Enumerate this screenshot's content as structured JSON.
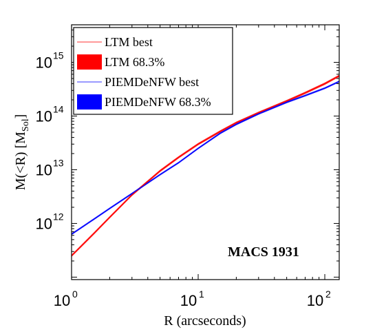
{
  "chart_data": {
    "type": "line",
    "xscale": "log",
    "yscale": "log",
    "xlim": [
      1,
      130
    ],
    "ylim": [
      90000000000.0,
      5000000000000000.0
    ],
    "xlabel": "R (arcseconds)",
    "ylabel_main": "M(<R)  [M",
    "ylabel_sub": "Sol",
    "ylabel_close": "]",
    "x_ticks": [
      {
        "base": "10",
        "exp": "0",
        "value": 1
      },
      {
        "base": "10",
        "exp": "1",
        "value": 10
      },
      {
        "base": "10",
        "exp": "2",
        "value": 100
      }
    ],
    "y_ticks": [
      {
        "base": "10",
        "exp": "12",
        "value": 1000000000000.0
      },
      {
        "base": "10",
        "exp": "13",
        "value": 10000000000000.0
      },
      {
        "base": "10",
        "exp": "14",
        "value": 100000000000000.0
      },
      {
        "base": "10",
        "exp": "15",
        "value": 1000000000000000.0
      }
    ],
    "annotation": "MACS 1931",
    "legend_position": "top-left",
    "legend": [
      {
        "label": "LTM best",
        "kind": "line",
        "color": "#ff3333"
      },
      {
        "label": "LTM 68.3%",
        "kind": "patch",
        "color": "#ff0000"
      },
      {
        "label": "PIEMDeNFW best",
        "kind": "line",
        "color": "#3333ff"
      },
      {
        "label": "PIEMDeNFW 68.3%",
        "kind": "patch",
        "color": "#0000ff"
      }
    ],
    "series": [
      {
        "name": "LTM best",
        "color": "#ff0000",
        "band_factor": 1.05,
        "x": [
          1,
          1.5,
          2,
          3,
          5,
          7,
          10,
          15,
          20,
          30,
          50,
          70,
          100,
          130
        ],
        "y": [
          250000000000.0,
          650000000000.0,
          1300000000000.0,
          3400000000000.0,
          9500000000000.0,
          17000000000000.0,
          30000000000000.0,
          52000000000000.0,
          75000000000000.0,
          115000000000000.0,
          190000000000000.0,
          270000000000000.0,
          400000000000000.0,
          560000000000000.0
        ]
      },
      {
        "name": "PIEMDeNFW best",
        "color": "#0000ff",
        "band_factor": 1.04,
        "x": [
          1,
          1.5,
          2,
          3,
          5,
          7,
          10,
          15,
          20,
          30,
          50,
          70,
          100,
          130
        ],
        "y": [
          630000000000.0,
          1200000000000.0,
          1900000000000.0,
          3600000000000.0,
          8100000000000.0,
          13500000000000.0,
          25000000000000.0,
          48000000000000.0,
          70000000000000.0,
          110000000000000.0,
          180000000000000.0,
          240000000000000.0,
          330000000000000.0,
          440000000000000.0
        ]
      }
    ]
  }
}
